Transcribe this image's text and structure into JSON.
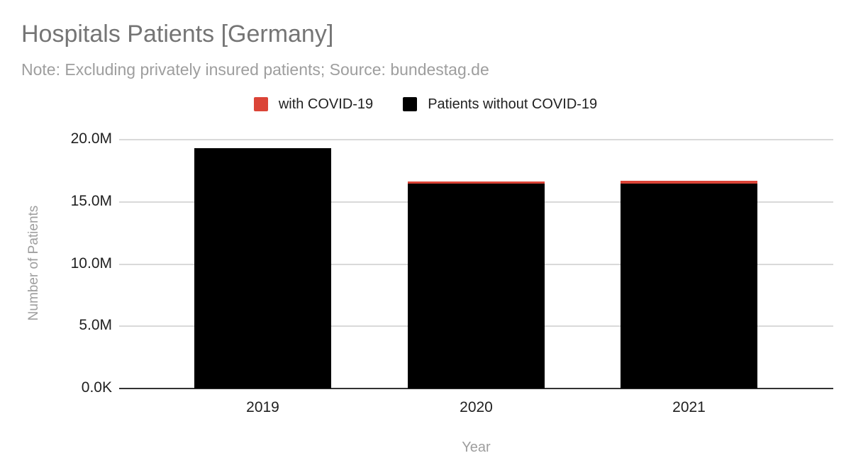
{
  "title": "Hospitals Patients [Germany]",
  "subtitle": "Note: Excluding privately insured patients; Source: bundestag.de",
  "colors": {
    "background": "#ffffff",
    "title_text": "#757575",
    "subtitle_text": "#9e9e9e",
    "axis_title_text": "#9e9e9e",
    "tick_text": "#212121",
    "gridline": "#d9d9d9",
    "baseline": "#333333",
    "with_covid": "#db4437",
    "without_covid": "#000000"
  },
  "chart_data": {
    "type": "bar",
    "stacked": true,
    "title": "Hospitals Patients [Germany]",
    "subtitle": "Note: Excluding privately insured patients; Source: bundestag.de",
    "xlabel": "Year",
    "ylabel": "Number of Patients",
    "categories": [
      "2019",
      "2020",
      "2021"
    ],
    "series": [
      {
        "name": "with COVID-19",
        "color": "#db4437",
        "values_millions": [
          0.0,
          0.17,
          0.25
        ]
      },
      {
        "name": "Patients without COVID-19",
        "color": "#000000",
        "values_millions": [
          19.3,
          16.48,
          16.45
        ]
      }
    ],
    "ylim_millions": [
      0,
      20
    ],
    "y_ticks": [
      {
        "value_millions": 20,
        "label": "20.0M"
      },
      {
        "value_millions": 15,
        "label": "15.0M"
      },
      {
        "value_millions": 10,
        "label": "10.0M"
      },
      {
        "value_millions": 5,
        "label": "5.0M"
      },
      {
        "value_millions": 0,
        "label": "0.0K"
      }
    ],
    "grid": true,
    "legend_position": "top"
  }
}
